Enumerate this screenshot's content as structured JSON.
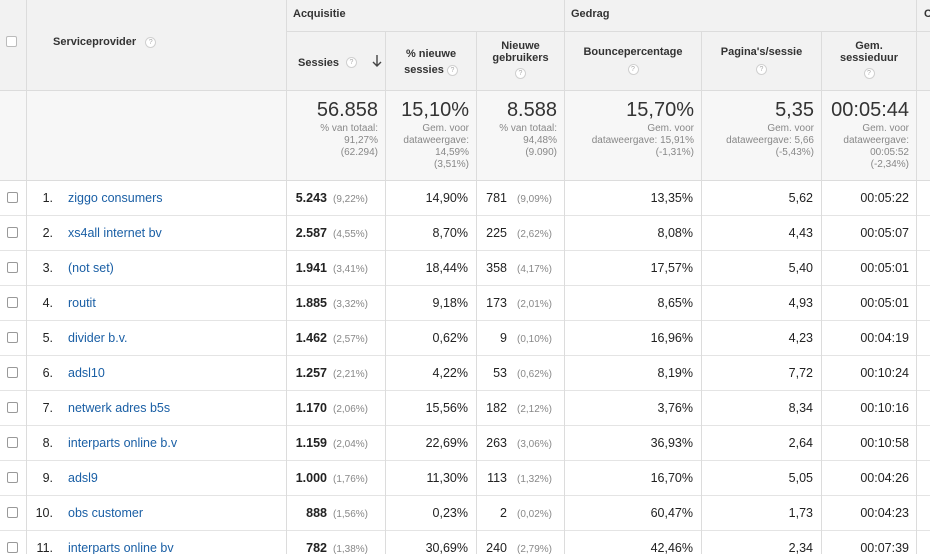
{
  "groups": {
    "acquisition": "Acquisitie",
    "behavior": "Gedrag",
    "conversions": "C"
  },
  "headers": {
    "dimension": "Serviceprovider",
    "sessions": "Sessies",
    "new_sessions_l1": "% nieuwe",
    "new_sessions_l2": "sessies",
    "new_users_l1": "Nieuwe",
    "new_users_l2": "gebruikers",
    "bounce": "Bouncepercentage",
    "pages_l1": "Pagina's/sessie",
    "duration_l1": "Gem.",
    "duration_l2": "sessieduur",
    "sort_icon": "arrow-down-icon",
    "help_glyph": "?"
  },
  "totals": {
    "sessions": {
      "value": "56.858",
      "l1": "% van totaal:",
      "l2": "91,27%",
      "l3": "(62.294)"
    },
    "new_sessions": {
      "value": "15,10%",
      "l1": "Gem. voor",
      "l2": "dataweergave:",
      "l3": "14,59%",
      "l4": "(3,51%)"
    },
    "new_users": {
      "value": "8.588",
      "l1": "% van totaal:",
      "l2": "94,48%",
      "l3": "(9.090)"
    },
    "bounce": {
      "value": "15,70%",
      "l1": "Gem. voor",
      "l2": "dataweergave: 15,91%",
      "l3": "(-1,31%)"
    },
    "pages": {
      "value": "5,35",
      "l1": "Gem. voor",
      "l2": "dataweergave: 5,66",
      "l3": "(-5,43%)"
    },
    "duration": {
      "value": "00:05:44",
      "l1": "Gem. voor",
      "l2": "dataweergave:",
      "l3": "00:05:52",
      "l4": "(-2,34%)"
    }
  },
  "rows": [
    {
      "idx": "1.",
      "name": "ziggo consumers",
      "sessions": "5.243",
      "sessions_pct": "(9,22%)",
      "new_sessions": "14,90%",
      "new_users": "781",
      "new_users_pct": "(9,09%)",
      "bounce": "13,35%",
      "pages": "5,62",
      "duration": "00:05:22"
    },
    {
      "idx": "2.",
      "name": "xs4all internet bv",
      "sessions": "2.587",
      "sessions_pct": "(4,55%)",
      "new_sessions": "8,70%",
      "new_users": "225",
      "new_users_pct": "(2,62%)",
      "bounce": "8,08%",
      "pages": "4,43",
      "duration": "00:05:07"
    },
    {
      "idx": "3.",
      "name": "(not set)",
      "sessions": "1.941",
      "sessions_pct": "(3,41%)",
      "new_sessions": "18,44%",
      "new_users": "358",
      "new_users_pct": "(4,17%)",
      "bounce": "17,57%",
      "pages": "5,40",
      "duration": "00:05:01"
    },
    {
      "idx": "4.",
      "name": "routit",
      "sessions": "1.885",
      "sessions_pct": "(3,32%)",
      "new_sessions": "9,18%",
      "new_users": "173",
      "new_users_pct": "(2,01%)",
      "bounce": "8,65%",
      "pages": "4,93",
      "duration": "00:05:01"
    },
    {
      "idx": "5.",
      "name": "divider b.v.",
      "sessions": "1.462",
      "sessions_pct": "(2,57%)",
      "new_sessions": "0,62%",
      "new_users": "9",
      "new_users_pct": "(0,10%)",
      "bounce": "16,96%",
      "pages": "4,23",
      "duration": "00:04:19"
    },
    {
      "idx": "6.",
      "name": "adsl10",
      "sessions": "1.257",
      "sessions_pct": "(2,21%)",
      "new_sessions": "4,22%",
      "new_users": "53",
      "new_users_pct": "(0,62%)",
      "bounce": "8,19%",
      "pages": "7,72",
      "duration": "00:10:24"
    },
    {
      "idx": "7.",
      "name": "netwerk adres b5s",
      "sessions": "1.170",
      "sessions_pct": "(2,06%)",
      "new_sessions": "15,56%",
      "new_users": "182",
      "new_users_pct": "(2,12%)",
      "bounce": "3,76%",
      "pages": "8,34",
      "duration": "00:10:16"
    },
    {
      "idx": "8.",
      "name": "interparts online b.v",
      "sessions": "1.159",
      "sessions_pct": "(2,04%)",
      "new_sessions": "22,69%",
      "new_users": "263",
      "new_users_pct": "(3,06%)",
      "bounce": "36,93%",
      "pages": "2,64",
      "duration": "00:10:58"
    },
    {
      "idx": "9.",
      "name": "adsl9",
      "sessions": "1.000",
      "sessions_pct": "(1,76%)",
      "new_sessions": "11,30%",
      "new_users": "113",
      "new_users_pct": "(1,32%)",
      "bounce": "16,70%",
      "pages": "5,05",
      "duration": "00:04:26"
    },
    {
      "idx": "10.",
      "name": "obs customer",
      "sessions": "888",
      "sessions_pct": "(1,56%)",
      "new_sessions": "0,23%",
      "new_users": "2",
      "new_users_pct": "(0,02%)",
      "bounce": "60,47%",
      "pages": "1,73",
      "duration": "00:04:23"
    },
    {
      "idx": "11.",
      "name": "interparts online bv",
      "sessions": "782",
      "sessions_pct": "(1,38%)",
      "new_sessions": "30,69%",
      "new_users": "240",
      "new_users_pct": "(2,79%)",
      "bounce": "42,46%",
      "pages": "2,34",
      "duration": "00:07:39"
    }
  ]
}
